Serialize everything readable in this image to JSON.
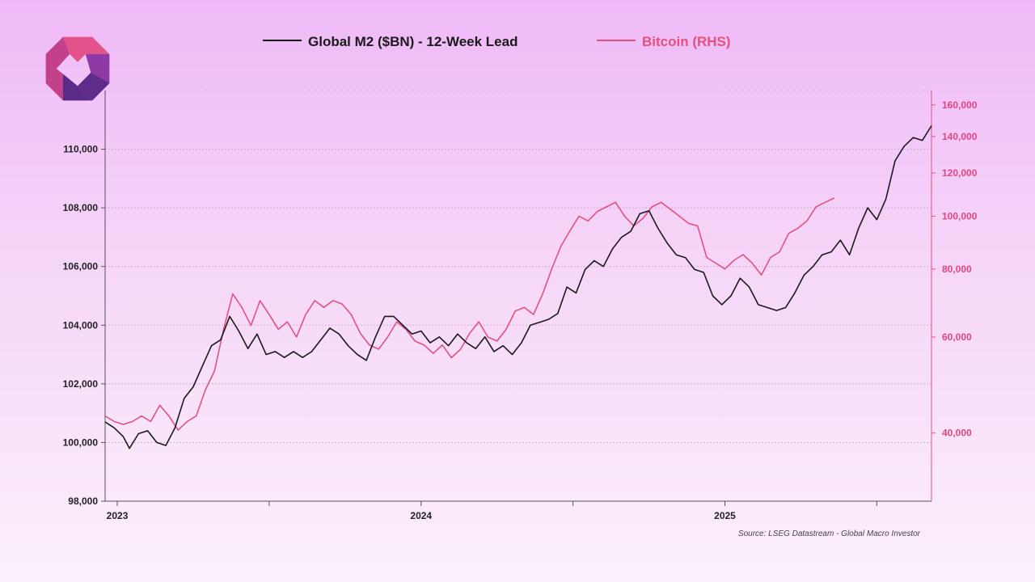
{
  "colors": {
    "m2": "#1a1a1a",
    "btc": "#e2517f",
    "right_axis_text": "#e0457f",
    "grid": "#c9b3c9",
    "logo_pink": "#e1538a",
    "logo_purple_dark": "#5b2b8a",
    "logo_purple_mid": "#8e3aa6",
    "logo_magenta": "#c2418b"
  },
  "logo": {
    "icon": "brand-logo-icon"
  },
  "chart_data": {
    "type": "line",
    "legend": {
      "placement": "top-center",
      "m2_label": "Global M2 ($BN) - 12-Week Lead",
      "btc_label": "Bitcoin (RHS)"
    },
    "source": "Source: LSEG Datastream - Global Macro Investor",
    "grid": true,
    "x_axis": {
      "ticks": [
        "2023",
        "2024",
        "2025"
      ],
      "range": [
        2022.96,
        2025.68
      ]
    },
    "y_left": {
      "range": [
        98000,
        112000
      ],
      "ticks": [
        98000,
        100000,
        102000,
        104000,
        106000,
        108000,
        110000
      ],
      "tick_labels": [
        "98,000",
        "100,000",
        "102,000",
        "104,000",
        "106,000",
        "108,000",
        "110,000"
      ]
    },
    "y_right": {
      "scale": "log",
      "range": [
        30000,
        170000
      ],
      "ticks": [
        40000,
        60000,
        80000,
        100000,
        120000,
        140000,
        160000
      ],
      "tick_labels": [
        "40,000",
        "60,000",
        "80,000",
        "100,000",
        "120,000",
        "140,000",
        "160,000"
      ]
    },
    "series": [
      {
        "name": "Global M2 ($BN) - 12-Week Lead",
        "axis": "left",
        "points": [
          [
            2022.96,
            100700
          ],
          [
            2022.99,
            100500
          ],
          [
            2023.02,
            100200
          ],
          [
            2023.04,
            99800
          ],
          [
            2023.07,
            100300
          ],
          [
            2023.1,
            100400
          ],
          [
            2023.13,
            100000
          ],
          [
            2023.16,
            99900
          ],
          [
            2023.19,
            100500
          ],
          [
            2023.22,
            101500
          ],
          [
            2023.25,
            101900
          ],
          [
            2023.28,
            102600
          ],
          [
            2023.31,
            103300
          ],
          [
            2023.34,
            103500
          ],
          [
            2023.37,
            104300
          ],
          [
            2023.4,
            103800
          ],
          [
            2023.43,
            103200
          ],
          [
            2023.46,
            103700
          ],
          [
            2023.49,
            103000
          ],
          [
            2023.52,
            103100
          ],
          [
            2023.55,
            102900
          ],
          [
            2023.58,
            103100
          ],
          [
            2023.61,
            102900
          ],
          [
            2023.64,
            103100
          ],
          [
            2023.67,
            103500
          ],
          [
            2023.7,
            103900
          ],
          [
            2023.73,
            103700
          ],
          [
            2023.76,
            103300
          ],
          [
            2023.79,
            103000
          ],
          [
            2023.82,
            102800
          ],
          [
            2023.85,
            103600
          ],
          [
            2023.88,
            104300
          ],
          [
            2023.91,
            104300
          ],
          [
            2023.94,
            104000
          ],
          [
            2023.97,
            103700
          ],
          [
            2024.0,
            103800
          ],
          [
            2024.03,
            103400
          ],
          [
            2024.06,
            103600
          ],
          [
            2024.09,
            103300
          ],
          [
            2024.12,
            103700
          ],
          [
            2024.15,
            103400
          ],
          [
            2024.18,
            103200
          ],
          [
            2024.21,
            103600
          ],
          [
            2024.24,
            103100
          ],
          [
            2024.27,
            103300
          ],
          [
            2024.3,
            103000
          ],
          [
            2024.33,
            103400
          ],
          [
            2024.36,
            104000
          ],
          [
            2024.39,
            104100
          ],
          [
            2024.42,
            104200
          ],
          [
            2024.45,
            104400
          ],
          [
            2024.48,
            105300
          ],
          [
            2024.51,
            105100
          ],
          [
            2024.54,
            105900
          ],
          [
            2024.57,
            106200
          ],
          [
            2024.6,
            106000
          ],
          [
            2024.63,
            106600
          ],
          [
            2024.66,
            107000
          ],
          [
            2024.69,
            107200
          ],
          [
            2024.72,
            107800
          ],
          [
            2024.75,
            107900
          ],
          [
            2024.78,
            107300
          ],
          [
            2024.81,
            106800
          ],
          [
            2024.84,
            106400
          ],
          [
            2024.87,
            106300
          ],
          [
            2024.9,
            105900
          ],
          [
            2024.93,
            105800
          ],
          [
            2024.96,
            105000
          ],
          [
            2024.99,
            104700
          ],
          [
            2025.02,
            105000
          ],
          [
            2025.05,
            105600
          ],
          [
            2025.08,
            105300
          ],
          [
            2025.11,
            104700
          ],
          [
            2025.14,
            104600
          ],
          [
            2025.17,
            104500
          ],
          [
            2025.2,
            104600
          ],
          [
            2025.23,
            105100
          ],
          [
            2025.26,
            105700
          ],
          [
            2025.29,
            106000
          ],
          [
            2025.32,
            106400
          ],
          [
            2025.35,
            106500
          ],
          [
            2025.38,
            106900
          ],
          [
            2025.41,
            106400
          ],
          [
            2025.44,
            107300
          ],
          [
            2025.47,
            108000
          ],
          [
            2025.5,
            107600
          ],
          [
            2025.53,
            108300
          ],
          [
            2025.56,
            109600
          ],
          [
            2025.59,
            110100
          ],
          [
            2025.62,
            110400
          ],
          [
            2025.65,
            110300
          ],
          [
            2025.68,
            110800
          ]
        ]
      },
      {
        "name": "Bitcoin (RHS)",
        "axis": "right",
        "points": [
          [
            2022.96,
            43000
          ],
          [
            2022.99,
            42000
          ],
          [
            2023.02,
            41500
          ],
          [
            2023.05,
            42000
          ],
          [
            2023.08,
            43000
          ],
          [
            2023.11,
            42000
          ],
          [
            2023.14,
            45000
          ],
          [
            2023.17,
            43000
          ],
          [
            2023.2,
            40500
          ],
          [
            2023.23,
            42000
          ],
          [
            2023.26,
            43000
          ],
          [
            2023.29,
            48000
          ],
          [
            2023.32,
            52000
          ],
          [
            2023.35,
            62000
          ],
          [
            2023.38,
            72000
          ],
          [
            2023.41,
            68000
          ],
          [
            2023.44,
            63000
          ],
          [
            2023.47,
            70000
          ],
          [
            2023.5,
            66000
          ],
          [
            2023.53,
            62000
          ],
          [
            2023.56,
            64000
          ],
          [
            2023.59,
            60000
          ],
          [
            2023.62,
            66000
          ],
          [
            2023.65,
            70000
          ],
          [
            2023.68,
            68000
          ],
          [
            2023.71,
            70000
          ],
          [
            2023.74,
            69000
          ],
          [
            2023.77,
            66000
          ],
          [
            2023.8,
            61000
          ],
          [
            2023.83,
            58000
          ],
          [
            2023.86,
            57000
          ],
          [
            2023.89,
            60000
          ],
          [
            2023.92,
            64000
          ],
          [
            2023.95,
            62000
          ],
          [
            2023.98,
            59000
          ],
          [
            2024.01,
            58000
          ],
          [
            2024.04,
            56000
          ],
          [
            2024.07,
            58000
          ],
          [
            2024.1,
            55000
          ],
          [
            2024.13,
            57000
          ],
          [
            2024.16,
            61000
          ],
          [
            2024.19,
            64000
          ],
          [
            2024.22,
            60000
          ],
          [
            2024.25,
            59000
          ],
          [
            2024.28,
            62000
          ],
          [
            2024.31,
            67000
          ],
          [
            2024.34,
            68000
          ],
          [
            2024.37,
            66000
          ],
          [
            2024.4,
            72000
          ],
          [
            2024.43,
            80000
          ],
          [
            2024.46,
            88000
          ],
          [
            2024.49,
            94000
          ],
          [
            2024.52,
            100000
          ],
          [
            2024.55,
            98000
          ],
          [
            2024.58,
            102000
          ],
          [
            2024.61,
            104000
          ],
          [
            2024.64,
            106000
          ],
          [
            2024.67,
            100000
          ],
          [
            2024.7,
            96000
          ],
          [
            2024.73,
            99000
          ],
          [
            2024.76,
            104000
          ],
          [
            2024.79,
            106000
          ],
          [
            2024.82,
            103000
          ],
          [
            2024.85,
            100000
          ],
          [
            2024.88,
            97000
          ],
          [
            2024.91,
            96000
          ],
          [
            2024.94,
            84000
          ],
          [
            2024.97,
            82000
          ],
          [
            2025.0,
            80000
          ],
          [
            2025.03,
            83000
          ],
          [
            2025.06,
            85000
          ],
          [
            2025.09,
            82000
          ],
          [
            2025.12,
            78000
          ],
          [
            2025.15,
            84000
          ],
          [
            2025.18,
            86000
          ],
          [
            2025.21,
            93000
          ],
          [
            2025.24,
            95000
          ],
          [
            2025.27,
            98000
          ],
          [
            2025.3,
            104000
          ],
          [
            2025.33,
            106000
          ],
          [
            2025.36,
            108000
          ]
        ]
      }
    ]
  }
}
